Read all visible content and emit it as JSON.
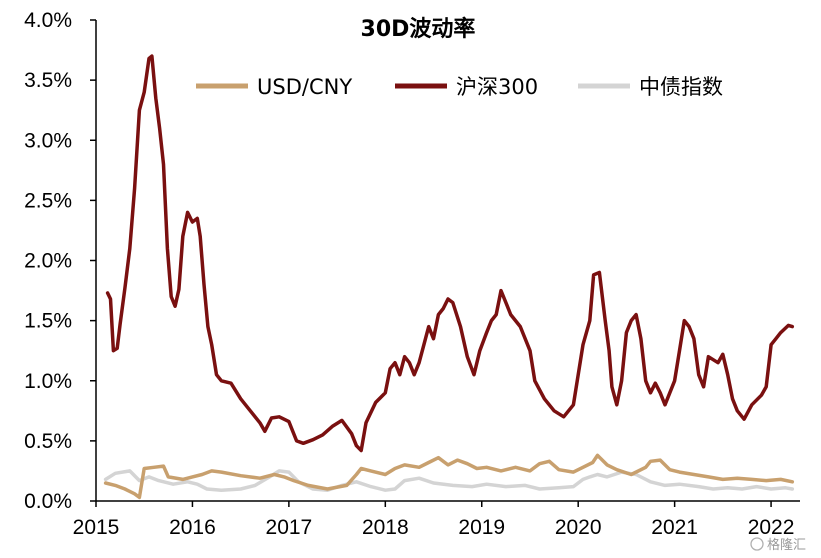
{
  "chart_data": {
    "type": "line",
    "title": "30D波动率",
    "xlabel": "",
    "ylabel": "",
    "xlim": [
      2015.0,
      2022.3
    ],
    "ylim": [
      0,
      4.0
    ],
    "x_ticks": [
      2015,
      2016,
      2017,
      2018,
      2019,
      2020,
      2021,
      2022
    ],
    "x_tick_labels": [
      "2015",
      "2016",
      "2017",
      "2018",
      "2019",
      "2020",
      "2021",
      "2022"
    ],
    "y_ticks": [
      0,
      0.5,
      1.0,
      1.5,
      2.0,
      2.5,
      3.0,
      3.5,
      4.0
    ],
    "y_tick_labels": [
      "0.0%",
      "0.5%",
      "1.0%",
      "1.5%",
      "2.0%",
      "2.5%",
      "3.0%",
      "3.5%",
      "4.0%"
    ],
    "grid": false,
    "legend_position": "top",
    "series": [
      {
        "name": "USD/CNY",
        "color": "#c8a06e",
        "points": [
          [
            2015.1,
            0.15
          ],
          [
            2015.2,
            0.13
          ],
          [
            2015.3,
            0.1
          ],
          [
            2015.4,
            0.06
          ],
          [
            2015.45,
            0.03
          ],
          [
            2015.5,
            0.27
          ],
          [
            2015.6,
            0.28
          ],
          [
            2015.7,
            0.29
          ],
          [
            2015.75,
            0.2
          ],
          [
            2015.9,
            0.18
          ],
          [
            2016.0,
            0.2
          ],
          [
            2016.1,
            0.22
          ],
          [
            2016.2,
            0.25
          ],
          [
            2016.3,
            0.24
          ],
          [
            2016.5,
            0.21
          ],
          [
            2016.7,
            0.19
          ],
          [
            2016.85,
            0.22
          ],
          [
            2016.95,
            0.2
          ],
          [
            2017.05,
            0.17
          ],
          [
            2017.2,
            0.13
          ],
          [
            2017.4,
            0.1
          ],
          [
            2017.6,
            0.13
          ],
          [
            2017.7,
            0.22
          ],
          [
            2017.75,
            0.27
          ],
          [
            2017.85,
            0.25
          ],
          [
            2018.0,
            0.22
          ],
          [
            2018.1,
            0.27
          ],
          [
            2018.2,
            0.3
          ],
          [
            2018.35,
            0.28
          ],
          [
            2018.45,
            0.32
          ],
          [
            2018.55,
            0.36
          ],
          [
            2018.65,
            0.3
          ],
          [
            2018.75,
            0.34
          ],
          [
            2018.85,
            0.31
          ],
          [
            2018.95,
            0.27
          ],
          [
            2019.05,
            0.28
          ],
          [
            2019.2,
            0.25
          ],
          [
            2019.35,
            0.28
          ],
          [
            2019.5,
            0.25
          ],
          [
            2019.6,
            0.31
          ],
          [
            2019.7,
            0.33
          ],
          [
            2019.8,
            0.26
          ],
          [
            2019.95,
            0.24
          ],
          [
            2020.05,
            0.28
          ],
          [
            2020.15,
            0.32
          ],
          [
            2020.2,
            0.38
          ],
          [
            2020.3,
            0.3
          ],
          [
            2020.4,
            0.26
          ],
          [
            2020.55,
            0.22
          ],
          [
            2020.7,
            0.28
          ],
          [
            2020.75,
            0.33
          ],
          [
            2020.85,
            0.34
          ],
          [
            2020.95,
            0.26
          ],
          [
            2021.05,
            0.24
          ],
          [
            2021.2,
            0.22
          ],
          [
            2021.35,
            0.2
          ],
          [
            2021.5,
            0.18
          ],
          [
            2021.65,
            0.19
          ],
          [
            2021.8,
            0.18
          ],
          [
            2021.95,
            0.17
          ],
          [
            2022.1,
            0.18
          ],
          [
            2022.22,
            0.16
          ]
        ]
      },
      {
        "name": "沪深300",
        "color": "#7a1010",
        "points": [
          [
            2015.12,
            1.73
          ],
          [
            2015.15,
            1.68
          ],
          [
            2015.18,
            1.25
          ],
          [
            2015.22,
            1.27
          ],
          [
            2015.25,
            1.47
          ],
          [
            2015.3,
            1.77
          ],
          [
            2015.35,
            2.1
          ],
          [
            2015.4,
            2.6
          ],
          [
            2015.45,
            3.25
          ],
          [
            2015.5,
            3.4
          ],
          [
            2015.55,
            3.68
          ],
          [
            2015.58,
            3.7
          ],
          [
            2015.62,
            3.35
          ],
          [
            2015.66,
            3.1
          ],
          [
            2015.7,
            2.8
          ],
          [
            2015.74,
            2.1
          ],
          [
            2015.78,
            1.7
          ],
          [
            2015.82,
            1.62
          ],
          [
            2015.86,
            1.76
          ],
          [
            2015.9,
            2.2
          ],
          [
            2015.95,
            2.4
          ],
          [
            2016.0,
            2.32
          ],
          [
            2016.05,
            2.35
          ],
          [
            2016.08,
            2.2
          ],
          [
            2016.12,
            1.8
          ],
          [
            2016.16,
            1.45
          ],
          [
            2016.2,
            1.3
          ],
          [
            2016.25,
            1.05
          ],
          [
            2016.3,
            1.0
          ],
          [
            2016.4,
            0.98
          ],
          [
            2016.5,
            0.85
          ],
          [
            2016.6,
            0.75
          ],
          [
            2016.7,
            0.65
          ],
          [
            2016.75,
            0.58
          ],
          [
            2016.82,
            0.69
          ],
          [
            2016.9,
            0.7
          ],
          [
            2017.0,
            0.66
          ],
          [
            2017.08,
            0.5
          ],
          [
            2017.15,
            0.48
          ],
          [
            2017.25,
            0.51
          ],
          [
            2017.35,
            0.55
          ],
          [
            2017.45,
            0.62
          ],
          [
            2017.55,
            0.67
          ],
          [
            2017.65,
            0.56
          ],
          [
            2017.7,
            0.46
          ],
          [
            2017.75,
            0.42
          ],
          [
            2017.8,
            0.65
          ],
          [
            2017.9,
            0.82
          ],
          [
            2018.0,
            0.9
          ],
          [
            2018.05,
            1.1
          ],
          [
            2018.1,
            1.15
          ],
          [
            2018.15,
            1.05
          ],
          [
            2018.2,
            1.2
          ],
          [
            2018.25,
            1.15
          ],
          [
            2018.3,
            1.05
          ],
          [
            2018.35,
            1.15
          ],
          [
            2018.4,
            1.3
          ],
          [
            2018.45,
            1.45
          ],
          [
            2018.5,
            1.35
          ],
          [
            2018.55,
            1.55
          ],
          [
            2018.6,
            1.6
          ],
          [
            2018.65,
            1.68
          ],
          [
            2018.7,
            1.65
          ],
          [
            2018.78,
            1.45
          ],
          [
            2018.85,
            1.2
          ],
          [
            2018.92,
            1.05
          ],
          [
            2018.98,
            1.25
          ],
          [
            2019.05,
            1.4
          ],
          [
            2019.1,
            1.5
          ],
          [
            2019.15,
            1.55
          ],
          [
            2019.2,
            1.75
          ],
          [
            2019.25,
            1.65
          ],
          [
            2019.3,
            1.55
          ],
          [
            2019.4,
            1.45
          ],
          [
            2019.5,
            1.25
          ],
          [
            2019.55,
            1.0
          ],
          [
            2019.65,
            0.85
          ],
          [
            2019.75,
            0.75
          ],
          [
            2019.85,
            0.7
          ],
          [
            2019.95,
            0.8
          ],
          [
            2020.05,
            1.3
          ],
          [
            2020.12,
            1.5
          ],
          [
            2020.16,
            1.88
          ],
          [
            2020.22,
            1.9
          ],
          [
            2020.28,
            1.5
          ],
          [
            2020.32,
            1.25
          ],
          [
            2020.35,
            0.95
          ],
          [
            2020.4,
            0.8
          ],
          [
            2020.45,
            1.0
          ],
          [
            2020.5,
            1.4
          ],
          [
            2020.55,
            1.5
          ],
          [
            2020.6,
            1.55
          ],
          [
            2020.65,
            1.35
          ],
          [
            2020.7,
            1.0
          ],
          [
            2020.75,
            0.9
          ],
          [
            2020.8,
            0.98
          ],
          [
            2020.85,
            0.9
          ],
          [
            2020.9,
            0.8
          ],
          [
            2020.95,
            0.9
          ],
          [
            2021.0,
            1.0
          ],
          [
            2021.05,
            1.25
          ],
          [
            2021.1,
            1.5
          ],
          [
            2021.15,
            1.45
          ],
          [
            2021.2,
            1.35
          ],
          [
            2021.25,
            1.05
          ],
          [
            2021.3,
            0.95
          ],
          [
            2021.35,
            1.2
          ],
          [
            2021.45,
            1.15
          ],
          [
            2021.5,
            1.22
          ],
          [
            2021.55,
            1.05
          ],
          [
            2021.6,
            0.85
          ],
          [
            2021.65,
            0.75
          ],
          [
            2021.72,
            0.68
          ],
          [
            2021.8,
            0.8
          ],
          [
            2021.9,
            0.88
          ],
          [
            2021.95,
            0.95
          ],
          [
            2022.0,
            1.3
          ],
          [
            2022.05,
            1.35
          ],
          [
            2022.1,
            1.4
          ],
          [
            2022.18,
            1.46
          ],
          [
            2022.22,
            1.45
          ]
        ]
      },
      {
        "name": "中债指数",
        "color": "#d4d4d4",
        "points": [
          [
            2015.1,
            0.18
          ],
          [
            2015.2,
            0.23
          ],
          [
            2015.35,
            0.25
          ],
          [
            2015.45,
            0.17
          ],
          [
            2015.55,
            0.2
          ],
          [
            2015.65,
            0.17
          ],
          [
            2015.8,
            0.14
          ],
          [
            2015.95,
            0.16
          ],
          [
            2016.05,
            0.14
          ],
          [
            2016.15,
            0.1
          ],
          [
            2016.3,
            0.09
          ],
          [
            2016.5,
            0.1
          ],
          [
            2016.65,
            0.13
          ],
          [
            2016.8,
            0.2
          ],
          [
            2016.9,
            0.25
          ],
          [
            2017.0,
            0.24
          ],
          [
            2017.1,
            0.16
          ],
          [
            2017.25,
            0.1
          ],
          [
            2017.4,
            0.09
          ],
          [
            2017.55,
            0.13
          ],
          [
            2017.7,
            0.16
          ],
          [
            2017.85,
            0.12
          ],
          [
            2018.0,
            0.09
          ],
          [
            2018.1,
            0.1
          ],
          [
            2018.2,
            0.17
          ],
          [
            2018.35,
            0.19
          ],
          [
            2018.5,
            0.15
          ],
          [
            2018.7,
            0.13
          ],
          [
            2018.9,
            0.12
          ],
          [
            2019.05,
            0.14
          ],
          [
            2019.25,
            0.12
          ],
          [
            2019.45,
            0.13
          ],
          [
            2019.6,
            0.1
          ],
          [
            2019.8,
            0.11
          ],
          [
            2019.95,
            0.12
          ],
          [
            2020.05,
            0.18
          ],
          [
            2020.12,
            0.2
          ],
          [
            2020.2,
            0.22
          ],
          [
            2020.3,
            0.2
          ],
          [
            2020.45,
            0.24
          ],
          [
            2020.6,
            0.22
          ],
          [
            2020.75,
            0.16
          ],
          [
            2020.9,
            0.13
          ],
          [
            2021.05,
            0.14
          ],
          [
            2021.25,
            0.12
          ],
          [
            2021.4,
            0.1
          ],
          [
            2021.55,
            0.11
          ],
          [
            2021.7,
            0.1
          ],
          [
            2021.85,
            0.12
          ],
          [
            2022.0,
            0.1
          ],
          [
            2022.15,
            0.11
          ],
          [
            2022.22,
            0.1
          ]
        ]
      }
    ]
  },
  "watermark": {
    "text": "格隆汇"
  }
}
